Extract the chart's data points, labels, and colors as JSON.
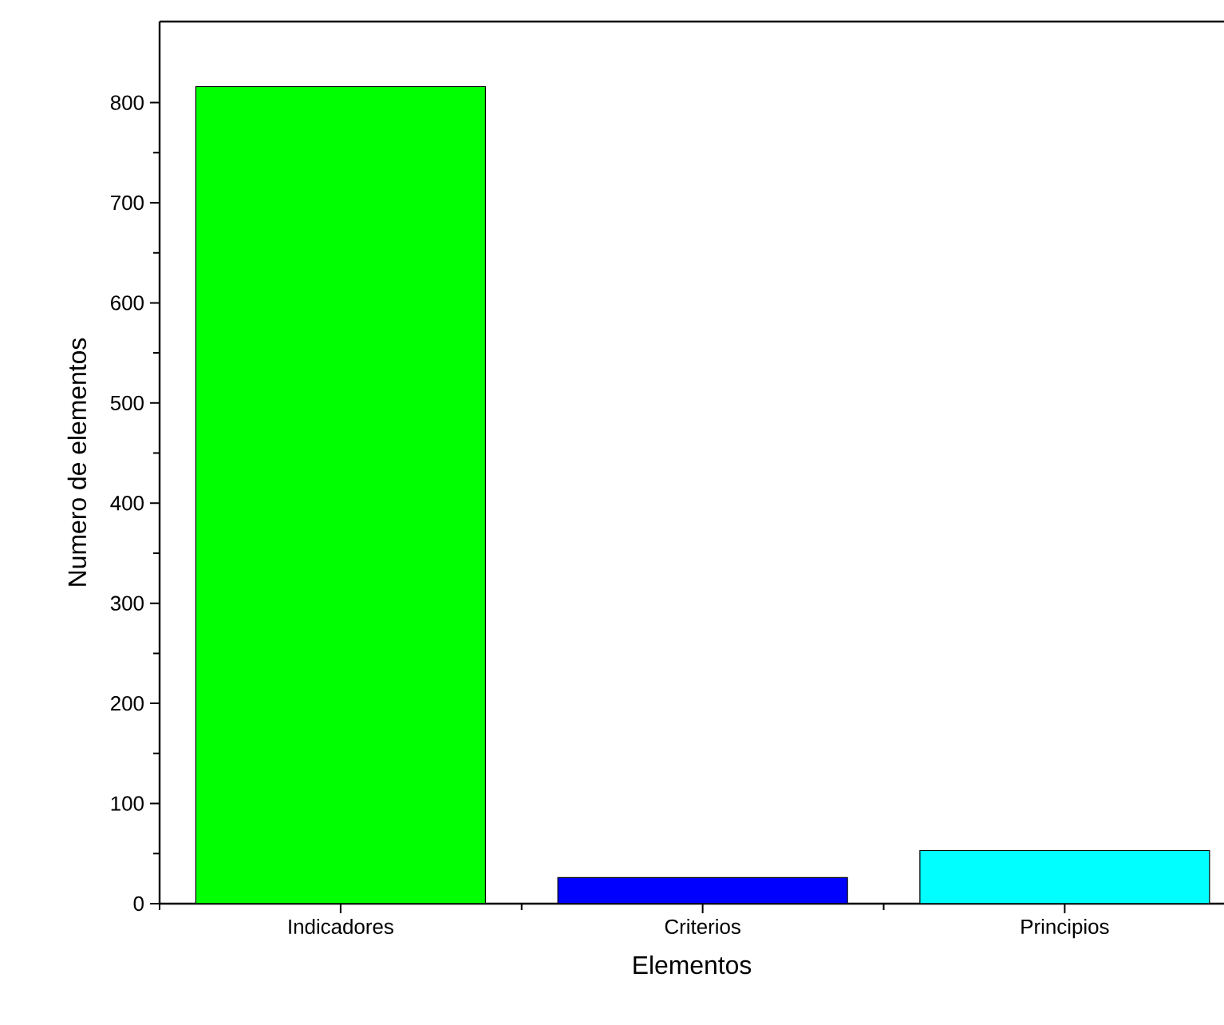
{
  "chart_data": {
    "type": "bar",
    "xlabel": "Elementos",
    "ylabel": "Numero de elementos",
    "categories": [
      "Indicadores",
      "Criterios",
      "Principios"
    ],
    "values": [
      816,
      26,
      53
    ],
    "colors": [
      "#00ff00",
      "#0000ff",
      "#00ffff"
    ],
    "ylim": [
      0,
      881
    ],
    "yticks": [
      0,
      100,
      200,
      300,
      400,
      500,
      600,
      700,
      800
    ]
  }
}
